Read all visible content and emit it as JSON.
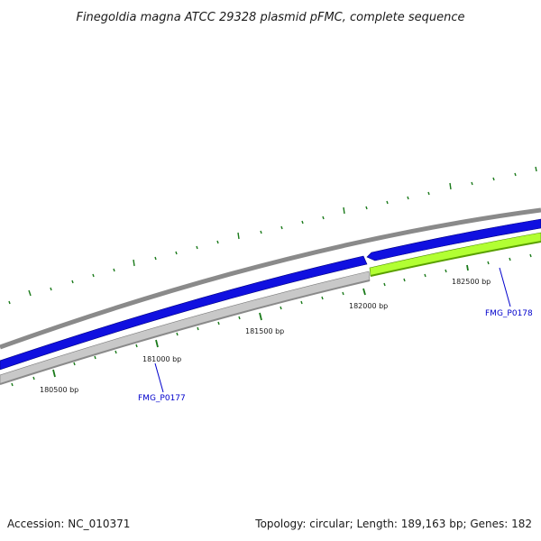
{
  "title": "Finegoldia magna ATCC 29328 plasmid pFMC, complete sequence",
  "footer": {
    "accession": "Accession: NC_010371",
    "summary": "Topology: circular; Length: 189,163 bp; Genes: 182"
  },
  "colors": {
    "backbone": "#8a8a8a",
    "forward_gene": "#1010e0",
    "reverse_gene_gray": "#c8c8c8",
    "reverse_gene_green": "#b2ff33",
    "tick": "#1a7a1a",
    "gene_label": "#0000cc"
  },
  "ticks": [
    {
      "label": "180500 bp"
    },
    {
      "label": "181000 bp"
    },
    {
      "label": "181500 bp"
    },
    {
      "label": "182000 bp"
    },
    {
      "label": "182500 bp"
    }
  ],
  "genes": [
    {
      "label": "FMG_P0177",
      "strand": "reverse",
      "color": "gray"
    },
    {
      "label": "FMG_P0178",
      "strand": "reverse",
      "color": "green"
    }
  ]
}
